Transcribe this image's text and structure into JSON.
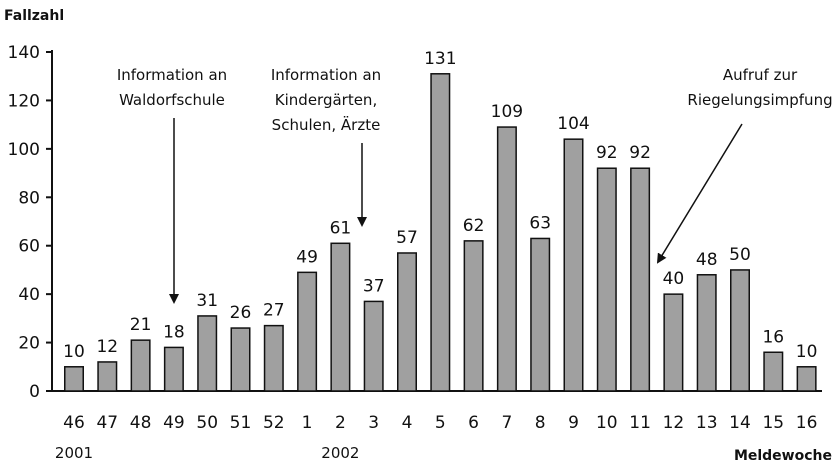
{
  "chart_data": {
    "type": "bar",
    "ylabel": "Fallzahl",
    "xlabel": "Meldewoche",
    "ylim": [
      0,
      140
    ],
    "yticks": [
      0,
      20,
      40,
      60,
      80,
      100,
      120,
      140
    ],
    "grid": false,
    "categories": [
      "46",
      "47",
      "48",
      "49",
      "50",
      "51",
      "52",
      "1",
      "2",
      "3",
      "4",
      "5",
      "6",
      "7",
      "8",
      "9",
      "10",
      "11",
      "12",
      "13",
      "14",
      "15",
      "16"
    ],
    "values": [
      10,
      12,
      21,
      18,
      31,
      26,
      27,
      49,
      61,
      37,
      57,
      131,
      62,
      109,
      63,
      104,
      92,
      92,
      40,
      48,
      50,
      16,
      10
    ],
    "bar_color": "#a0a0a0",
    "years": [
      {
        "label": "2001",
        "category": "46"
      },
      {
        "label": "2002",
        "category": "2"
      }
    ],
    "annotations": [
      {
        "lines": [
          "Information an",
          "Waldorfschule"
        ],
        "category": "49"
      },
      {
        "lines": [
          "Information an",
          "Kindergärten,",
          "Schulen, Ärzte"
        ],
        "category": "3"
      },
      {
        "lines": [
          "Aufruf zur",
          "Riegelungsimpfung"
        ],
        "category": "11"
      }
    ]
  }
}
